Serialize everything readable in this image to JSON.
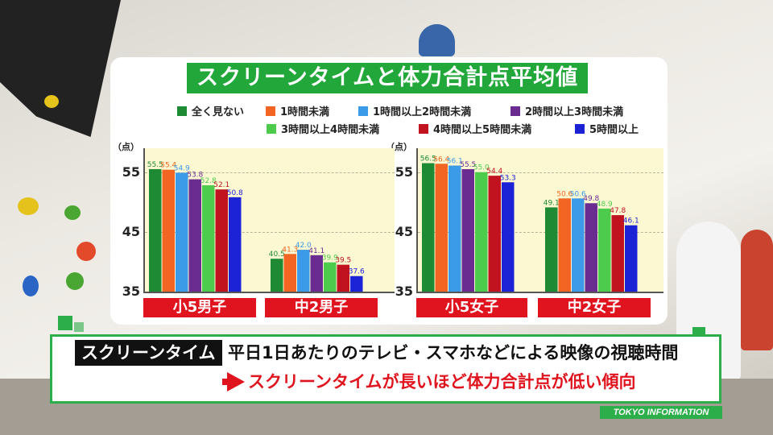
{
  "title": "スクリーンタイムと体力合計点平均値",
  "unit_label": "（点）",
  "legend": [
    {
      "label": "全く見ない",
      "color": "#1e8a34"
    },
    {
      "label": "1時間未満",
      "color": "#f26522"
    },
    {
      "label": "1時間以上2時間未満",
      "color": "#3b9be8"
    },
    {
      "label": "2時間以上3時間未満",
      "color": "#6a2c91"
    },
    {
      "label": "3時間以上4時間未満",
      "color": "#4ccb4c"
    },
    {
      "label": "4時間以上5時間未満",
      "color": "#c1121f"
    },
    {
      "label": "5時間以上",
      "color": "#1c22d6"
    }
  ],
  "chart_data": [
    {
      "type": "bar",
      "categories": [
        "小5男子",
        "中2男子"
      ],
      "ylim": [
        35,
        59
      ],
      "yticks": [
        35,
        45,
        55
      ],
      "grid": true,
      "series": [
        {
          "name": "全く見ない",
          "values": [
            55.5,
            40.5
          ]
        },
        {
          "name": "1時間未満",
          "values": [
            55.4,
            41.3
          ]
        },
        {
          "name": "1時間以上2時間未満",
          "values": [
            54.9,
            42.0
          ]
        },
        {
          "name": "2時間以上3時間未満",
          "values": [
            53.8,
            41.1
          ]
        },
        {
          "name": "3時間以上4時間未満",
          "values": [
            52.8,
            39.9
          ]
        },
        {
          "name": "4時間以上5時間未満",
          "values": [
            52.1,
            39.5
          ]
        },
        {
          "name": "5時間以上",
          "values": [
            50.8,
            37.6
          ]
        }
      ]
    },
    {
      "type": "bar",
      "categories": [
        "小5女子",
        "中2女子"
      ],
      "ylim": [
        35,
        59
      ],
      "yticks": [
        35,
        45,
        55
      ],
      "grid": true,
      "series": [
        {
          "name": "全く見ない",
          "values": [
            56.5,
            49.1
          ]
        },
        {
          "name": "1時間未満",
          "values": [
            56.4,
            50.6
          ]
        },
        {
          "name": "1時間以上2時間未満",
          "values": [
            56.1,
            50.6
          ]
        },
        {
          "name": "2時間以上3時間未満",
          "values": [
            55.5,
            49.8
          ]
        },
        {
          "name": "3時間以上4時間未満",
          "values": [
            55.0,
            48.9
          ]
        },
        {
          "name": "4時間以上5時間未満",
          "values": [
            54.4,
            47.8
          ]
        },
        {
          "name": "5時間以上",
          "values": [
            53.3,
            46.1
          ]
        }
      ]
    }
  ],
  "caption": {
    "tag": "スクリーンタイム",
    "line1": "平日1日あたりのテレビ・スマホなどによる映像の視聴時間",
    "line2": "スクリーンタイムが長いほど体力合計点が低い傾向"
  },
  "brand": "TOKYO INFORMATION"
}
